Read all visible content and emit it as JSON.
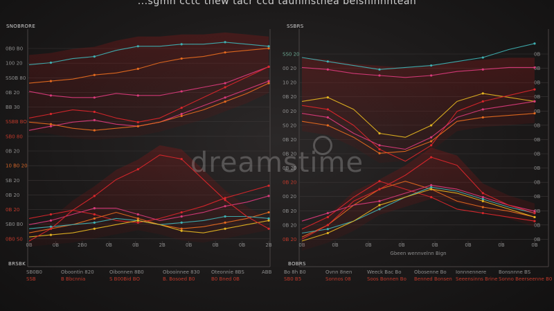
{
  "header": {
    "title": "...sgmn cctc thew tacr ccd tauninstnea beisninnntean",
    "left_tag": "SNOBRORE",
    "right_tag": "SSBRS",
    "left_legend_tag": "BRSBK",
    "right_legend_tag": "BOBRS"
  },
  "watermark": "dreamstime",
  "colors": {
    "background": "#1c1a1a",
    "grid": "#3a3636",
    "red": "#d8262b",
    "orange": "#e46a1f",
    "yellow": "#e2b321",
    "pink": "#d83a7a",
    "teal": "#3fb0b2",
    "band": "#7a1414"
  },
  "chart_data": [
    {
      "type": "line",
      "title": "",
      "xlabel": "",
      "ylabel": "",
      "x_tick_labels": [
        "0B",
        "0B",
        "2B0",
        "0B",
        "0B",
        "2B",
        "0B",
        "0B",
        "0B",
        "2B"
      ],
      "y_tick_labels": [
        "0B0 B0",
        "100 20",
        "SS0B 80",
        "0B 20",
        "BB 30",
        "SSBB BO",
        "SB0 80",
        "0B 20",
        "10 B0 20",
        "SB 20",
        "0B 20",
        "0B 20",
        "SB0 B0",
        "0B0 S0"
      ],
      "y_tick_colors": [
        "gray",
        "gray",
        "gray",
        "gray",
        "gray",
        "red",
        "red",
        "gray",
        "orange",
        "gray",
        "gray",
        "red",
        "gray",
        "red"
      ],
      "ylim": [
        0,
        100
      ],
      "legend": [
        {
          "label": "SB0B0",
          "sub": "SSB"
        },
        {
          "label": "Oboontin 820",
          "sub": "B Bbcnnia"
        },
        {
          "label": "Oibonnen 8B0",
          "sub": "S B00Bid BO"
        },
        {
          "label": "Obooinnee 830",
          "sub": "B. Bosoed B0"
        },
        {
          "label": "Oteonnie 8BS",
          "sub": "B0 Bned 0B"
        },
        {
          "label": "ABB",
          "sub": ""
        }
      ],
      "series": [
        {
          "color": "orange",
          "values": [
            77,
            78,
            79,
            81,
            82,
            84,
            87,
            89,
            90,
            92,
            93,
            94
          ]
        },
        {
          "color": "teal",
          "values": [
            86,
            87,
            89,
            90,
            93,
            95,
            95,
            96,
            96,
            97,
            96,
            95
          ]
        },
        {
          "color": "pink",
          "values": [
            73,
            71,
            70,
            70,
            72,
            71,
            71,
            73,
            75,
            77,
            81,
            85
          ]
        },
        {
          "color": "red",
          "values": [
            60,
            62,
            64,
            63,
            60,
            58,
            60,
            65,
            70,
            75,
            80,
            85
          ]
        },
        {
          "color": "pink",
          "values": [
            54,
            56,
            58,
            59,
            57,
            56,
            58,
            62,
            66,
            70,
            74,
            78
          ]
        },
        {
          "color": "orange",
          "values": [
            58,
            57,
            55,
            54,
            55,
            56,
            58,
            61,
            64,
            68,
            72,
            77
          ]
        },
        {
          "color": "red",
          "values": [
            11,
            13,
            15,
            13,
            10,
            9,
            11,
            14,
            17,
            21,
            24,
            27
          ]
        },
        {
          "color": "pink",
          "values": [
            8,
            10,
            13,
            16,
            16,
            13,
            10,
            12,
            14,
            17,
            19,
            22
          ]
        },
        {
          "color": "orange",
          "values": [
            4,
            6,
            8,
            11,
            14,
            11,
            8,
            6,
            7,
            9,
            11,
            14
          ]
        },
        {
          "color": "teal",
          "values": [
            6,
            7,
            8,
            9,
            11,
            10,
            8,
            9,
            10,
            12,
            12,
            11
          ]
        },
        {
          "color": "yellow",
          "values": [
            2,
            3,
            4,
            6,
            8,
            10,
            8,
            5,
            4,
            6,
            8,
            10
          ]
        },
        {
          "color": "red",
          "values": [
            0,
            6,
            15,
            22,
            30,
            35,
            42,
            40,
            30,
            20,
            12,
            6
          ]
        }
      ]
    },
    {
      "type": "line",
      "title": "",
      "xlabel": "Gbeen wennvelnn Bign",
      "ylabel": "",
      "x_tick_labels": [
        "0B",
        "0B",
        "0B",
        "0B",
        "0B",
        "0B",
        "0B",
        "0B"
      ],
      "y_tick_labels": [
        "SS0 20",
        "00 20",
        "10 20",
        "0B 20",
        "00 20",
        "S0 20",
        "0B 20",
        "0B 20",
        "0B 20",
        "0B 20",
        "00 20",
        "0B 20",
        "0B 20",
        "0B 20"
      ],
      "right_tick_labels": [
        "0B",
        "0B",
        "0B",
        "0B",
        "0B",
        "0B",
        "0B",
        "0B",
        "0B",
        "0B",
        "0B",
        "0B",
        "0B",
        "0B"
      ],
      "y_tick_colors": [
        "green",
        "gray",
        "gray",
        "gray",
        "gray",
        "gray",
        "gray",
        "gray",
        "gray",
        "red",
        "gray",
        "gray",
        "gray",
        "red"
      ],
      "ylim": [
        0,
        100
      ],
      "legend": [
        {
          "label": "Bo 8h B0",
          "sub": "SB0 B5"
        },
        {
          "label": "Ovnn 8nen",
          "sub": "Sonnos 08"
        },
        {
          "label": "Weeck Bac Bo",
          "sub": "Soos Bonnen Bo"
        },
        {
          "label": "Obosenne Bo",
          "sub": "Benned Bonsen"
        },
        {
          "label": "Ionnnennere",
          "sub": "Seeensinns Brine"
        },
        {
          "label": "Bonsnnne BS",
          "sub": "Sonno Beerseenne B0"
        }
      ],
      "series": [
        {
          "color": "teal",
          "values": [
            92,
            90,
            88,
            86,
            87,
            88,
            90,
            92,
            96,
            99
          ]
        },
        {
          "color": "pink",
          "values": [
            87,
            86,
            84,
            83,
            82,
            83,
            85,
            86,
            87,
            87
          ]
        },
        {
          "color": "yellow",
          "values": [
            70,
            72,
            66,
            54,
            52,
            58,
            70,
            74,
            72,
            70
          ]
        },
        {
          "color": "red",
          "values": [
            68,
            66,
            58,
            46,
            40,
            48,
            65,
            70,
            73,
            76
          ]
        },
        {
          "color": "pink",
          "values": [
            64,
            62,
            54,
            48,
            46,
            52,
            62,
            66,
            68,
            70
          ]
        },
        {
          "color": "orange",
          "values": [
            60,
            58,
            52,
            44,
            45,
            50,
            60,
            62,
            63,
            64
          ]
        },
        {
          "color": "red",
          "values": [
            6,
            12,
            22,
            30,
            26,
            22,
            16,
            14,
            12,
            10
          ]
        },
        {
          "color": "orange",
          "values": [
            2,
            8,
            18,
            26,
            30,
            26,
            20,
            17,
            15,
            12
          ]
        },
        {
          "color": "pink",
          "values": [
            10,
            14,
            18,
            20,
            24,
            28,
            26,
            22,
            18,
            15
          ]
        },
        {
          "color": "teal",
          "values": [
            4,
            6,
            10,
            16,
            22,
            27,
            25,
            21,
            17,
            14
          ]
        },
        {
          "color": "yellow",
          "values": [
            0,
            4,
            10,
            18,
            22,
            26,
            24,
            20,
            16,
            12
          ]
        },
        {
          "color": "red",
          "values": [
            1,
            8,
            20,
            26,
            33,
            42,
            38,
            24,
            18,
            14
          ]
        }
      ]
    }
  ]
}
